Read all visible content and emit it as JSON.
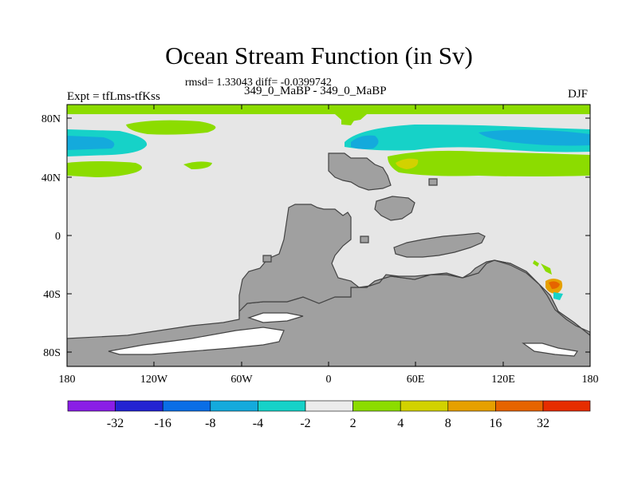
{
  "title": "Ocean Stream Function (in Sv)",
  "stats": "rmsd= 1.33043 diff= -0.0399742",
  "subtitle": "349_0_MaBP - 349_0_MaBP",
  "left_label": "Expt = tfLms-tfKss",
  "right_label": "DJF",
  "axes": {
    "lat_ticks": [
      "80N",
      "40N",
      "0",
      "40S",
      "80S"
    ],
    "lon_ticks": [
      "180",
      "120W",
      "60W",
      "0",
      "60E",
      "120E",
      "180"
    ]
  },
  "colorbar": {
    "labels": [
      "-32",
      "-16",
      "-8",
      "-4",
      "-2",
      "2",
      "4",
      "8",
      "16",
      "32"
    ],
    "colors": [
      "#8a1ee6",
      "#2323d2",
      "#0a6ee6",
      "#14aadc",
      "#16d2c8",
      "#ececec",
      "#8cdc00",
      "#d2d200",
      "#e6a000",
      "#e66400",
      "#e62d00"
    ]
  },
  "map": {
    "land_color": "#a0a0a0",
    "ocean_color": "#e6e6e6"
  }
}
